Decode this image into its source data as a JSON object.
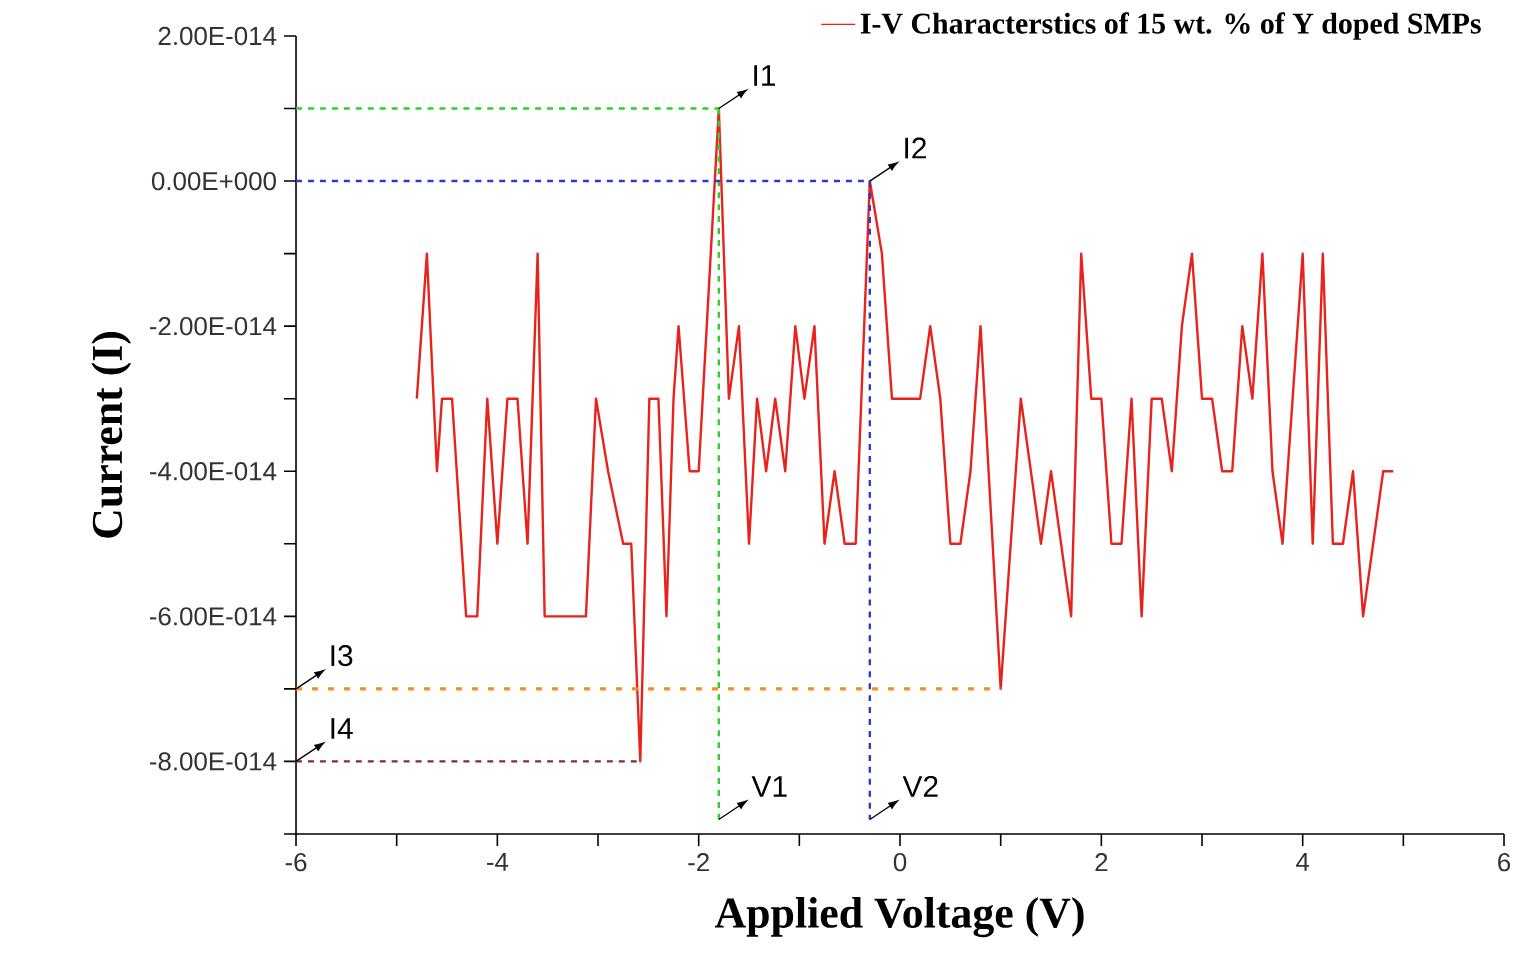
{
  "chart_data": {
    "type": "line",
    "xlabel": "Applied Voltage (V)",
    "ylabel": "Current (I)",
    "xlim": [
      -6,
      6
    ],
    "ylim": [
      -9e-14,
      2e-14
    ],
    "xticks": [
      -6,
      {
        "value": -5,
        "label": null
      },
      -4,
      {
        "value": -3,
        "label": null
      },
      -2,
      {
        "value": -1,
        "label": null
      },
      0,
      {
        "value": 1,
        "label": null
      },
      2,
      {
        "value": 3,
        "label": null
      },
      4,
      {
        "value": 5,
        "label": null
      },
      6
    ],
    "yticks": [
      {
        "value": -9e-14,
        "label": null
      },
      {
        "value": -8e-14,
        "label": "-8.00E-014"
      },
      {
        "value": -7e-14,
        "label": null
      },
      {
        "value": -6e-14,
        "label": "-6.00E-014"
      },
      {
        "value": -5e-14,
        "label": null
      },
      {
        "value": -4e-14,
        "label": "-4.00E-014"
      },
      {
        "value": -3e-14,
        "label": null
      },
      {
        "value": -2e-14,
        "label": "-2.00E-014"
      },
      {
        "value": -1e-14,
        "label": null
      },
      {
        "value": 0,
        "label": "0.00E+000"
      },
      {
        "value": 1e-14,
        "label": null
      },
      {
        "value": 2e-14,
        "label": "2.00E-014"
      }
    ],
    "legend": "top right",
    "grid": false,
    "series": [
      {
        "name": "I-V Characterstics of 15 wt. % of Y doped SMPs",
        "color": "#e8231d",
        "line_style": "solid",
        "x": [
          -4.8,
          -4.7,
          -4.6,
          -4.55,
          -4.45,
          -4.31,
          -4.2,
          -4.1,
          -4.0,
          -3.9,
          -3.8,
          -3.7,
          -3.6,
          -3.53,
          -3.12,
          -3.02,
          -2.9,
          -2.75,
          -2.67,
          -2.58,
          -2.49,
          -2.4,
          -2.32,
          -2.25,
          -2.2,
          -2.09,
          -2.0,
          -1.8,
          -1.7,
          -1.6,
          -1.5,
          -1.42,
          -1.33,
          -1.24,
          -1.14,
          -1.04,
          -0.95,
          -0.85,
          -0.75,
          -0.65,
          -0.55,
          -0.44,
          -0.3,
          -0.18,
          -0.08,
          0.2,
          0.3,
          0.4,
          0.5,
          0.6,
          0.7,
          0.8,
          1.0,
          1.2,
          1.4,
          1.5,
          1.7,
          1.8,
          1.9,
          2.0,
          2.1,
          2.2,
          2.3,
          2.4,
          2.5,
          2.6,
          2.7,
          2.8,
          2.9,
          3.0,
          3.1,
          3.2,
          3.3,
          3.4,
          3.5,
          3.6,
          3.7,
          3.8,
          4.0,
          4.1,
          4.2,
          4.3,
          4.4,
          4.5,
          4.6,
          4.8,
          4.9
        ],
        "values": [
          -3e-14,
          -1e-14,
          -4e-14,
          -3e-14,
          -3e-14,
          -6e-14,
          -6e-14,
          -3e-14,
          -5e-14,
          -3e-14,
          -3e-14,
          -5e-14,
          -1e-14,
          -6e-14,
          -6e-14,
          -3e-14,
          -4e-14,
          -5e-14,
          -5e-14,
          -8e-14,
          -3e-14,
          -3e-14,
          -6e-14,
          -3e-14,
          -2e-14,
          -4e-14,
          -4e-14,
          1e-14,
          -3e-14,
          -2e-14,
          -5e-14,
          -3e-14,
          -4e-14,
          -3e-14,
          -4e-14,
          -2e-14,
          -3e-14,
          -2e-14,
          -5e-14,
          -4e-14,
          -5e-14,
          -5e-14,
          0,
          -1e-14,
          -3e-14,
          -3e-14,
          -2e-14,
          -3e-14,
          -5e-14,
          -5e-14,
          -4e-14,
          -2e-14,
          -7e-14,
          -3e-14,
          -5e-14,
          -4e-14,
          -6e-14,
          -1e-14,
          -3e-14,
          -3e-14,
          -5e-14,
          -5e-14,
          -3e-14,
          -6e-14,
          -3e-14,
          -3e-14,
          -4e-14,
          -2e-14,
          -1e-14,
          -3e-14,
          -3e-14,
          -4e-14,
          -4e-14,
          -2e-14,
          -3e-14,
          -1e-14,
          -4e-14,
          -5e-14,
          -1e-14,
          -5e-14,
          -1e-14,
          -5e-14,
          -5e-14,
          -4e-14,
          -6e-14,
          -4e-14,
          -4e-14
        ]
      },
      {
        "color": "#33cc33",
        "line_style": "dashed",
        "x": [
          -6,
          -1.8
        ],
        "values": [
          1e-14,
          1e-14
        ]
      },
      {
        "color": "#33cc33",
        "line_style": "dashed",
        "x": [
          -1.8,
          -1.8
        ],
        "values": [
          1e-14,
          -8.8e-14
        ]
      },
      {
        "color": "#2a3ccc",
        "line_style": "dashed",
        "x": [
          -6,
          -0.3
        ],
        "values": [
          0,
          0
        ]
      },
      {
        "color": "#2a3ccc",
        "line_style": "dashed",
        "x": [
          -0.3,
          -0.3
        ],
        "values": [
          0,
          -8.8e-14
        ]
      },
      {
        "color": "#ff8c1a",
        "line_style": "dotted",
        "x": [
          -6,
          1.0
        ],
        "values": [
          -7e-14,
          -7e-14
        ]
      },
      {
        "color": "#8b2a2a",
        "line_style": "dashed",
        "x": [
          -6,
          -2.6
        ],
        "values": [
          -8e-14,
          -8e-14
        ]
      }
    ],
    "annotations": [
      {
        "text": "I1",
        "x": -1.8,
        "y": 1e-14
      },
      {
        "text": "I2",
        "x": -0.3,
        "y": 0
      },
      {
        "text": "I3",
        "x": -6,
        "y": -7e-14
      },
      {
        "text": "I4",
        "x": -6,
        "y": -8e-14
      },
      {
        "text": "V1",
        "x": -1.8,
        "y": -8.8e-14
      },
      {
        "text": "V2",
        "x": -0.3,
        "y": -8.8e-14
      }
    ]
  }
}
